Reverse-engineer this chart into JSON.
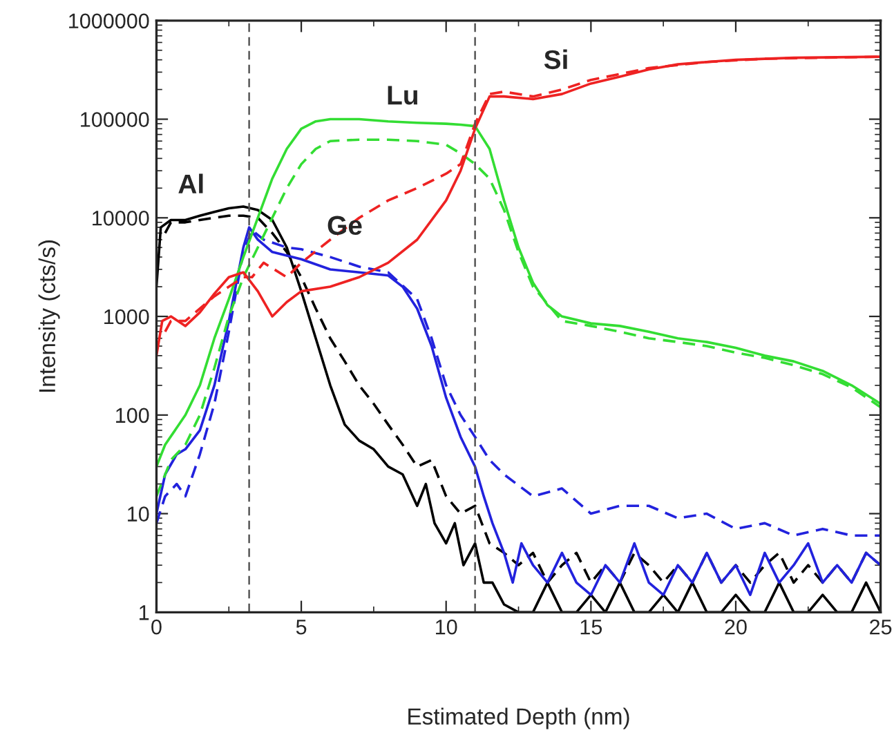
{
  "chart_data": {
    "type": "line",
    "xlabel": "Estimated Depth (nm)",
    "ylabel": "Intensity (cts/s)",
    "xlim": [
      0,
      25
    ],
    "xticks": [
      0,
      5,
      10,
      15,
      20,
      25
    ],
    "ylim": [
      1,
      1000000
    ],
    "yticks": [
      1,
      10,
      100,
      1000,
      10000,
      100000,
      1000000
    ],
    "log": "y",
    "grid": false,
    "legend": false,
    "marker": "none",
    "ref_lines": [
      {
        "axis": "x",
        "value": 3.2,
        "color": "#555555",
        "line_style": "dashed"
      },
      {
        "axis": "x",
        "value": 11.0,
        "color": "#555555",
        "line_style": "dashed"
      }
    ],
    "annotations": [
      "Al",
      "Ge",
      "Lu",
      "Si"
    ],
    "series": [
      {
        "color": "#000000",
        "line_style": "solid",
        "x": [
          0,
          0.15,
          0.5,
          1,
          1.5,
          2,
          2.5,
          3,
          3.5,
          4,
          4.5,
          5,
          5.5,
          6,
          6.5,
          7,
          7.5,
          8,
          8.5,
          9,
          9.3,
          9.6,
          10,
          10.3,
          10.6,
          11,
          11.3,
          11.6,
          12,
          12.5,
          13,
          13.5,
          14,
          14.5,
          15,
          15.5,
          16,
          16.5,
          17,
          17.5,
          18,
          18.5,
          19,
          19.5,
          20,
          20.5,
          21,
          21.5,
          22,
          22.5,
          23,
          23.5,
          24,
          24.5,
          25
        ],
        "values": [
          2000,
          8000,
          9500,
          9500,
          10500,
          11500,
          12500,
          13000,
          12000,
          9500,
          5000,
          1800,
          600,
          200,
          80,
          55,
          45,
          30,
          25,
          12,
          20,
          8,
          5,
          8,
          3,
          5,
          2,
          2,
          1.2,
          1,
          1,
          2,
          1,
          1,
          1.5,
          1,
          2,
          1,
          1,
          1.5,
          1,
          2,
          1,
          1,
          1.5,
          1,
          1,
          2,
          1,
          1,
          1.5,
          1,
          1,
          2,
          1
        ]
      },
      {
        "color": "#000000",
        "line_style": "dashed",
        "x": [
          0.3,
          0.5,
          1,
          1.5,
          2,
          2.5,
          3,
          3.5,
          4,
          4.5,
          5,
          5.5,
          6,
          6.5,
          7,
          7.5,
          8,
          8.5,
          9,
          9.5,
          10,
          10.5,
          11,
          11.5,
          12,
          12.5,
          13,
          13.5,
          14,
          14.5,
          15,
          15.5,
          16,
          16.5,
          17,
          17.5,
          18,
          18.5,
          19,
          19.5,
          20,
          20.5,
          21,
          21.5,
          22,
          22.5,
          23,
          23.5,
          24,
          24.5,
          25
        ],
        "values": [
          7000,
          9000,
          9000,
          9500,
          10000,
          10500,
          10500,
          10000,
          7000,
          4500,
          2500,
          1200,
          600,
          350,
          200,
          130,
          80,
          50,
          30,
          35,
          15,
          10,
          12,
          5,
          4,
          3,
          4,
          2,
          3,
          4,
          2,
          3,
          2,
          4,
          3,
          2,
          3,
          2,
          4,
          2,
          3,
          2,
          3,
          4,
          2,
          3,
          2,
          3,
          2,
          4,
          3
        ]
      },
      {
        "color": "#2222dd",
        "line_style": "solid",
        "x": [
          0,
          0.3,
          0.7,
          1,
          1.5,
          2,
          2.5,
          3,
          3.2,
          3.5,
          4,
          5,
          6,
          7,
          8,
          8.5,
          9,
          9.5,
          10,
          10.5,
          11,
          11.3,
          11.6,
          12,
          12.3,
          12.6,
          13,
          13.5,
          14,
          14.5,
          15,
          15.5,
          16,
          16.5,
          17,
          17.5,
          18,
          18.5,
          19,
          19.5,
          20,
          20.5,
          21,
          21.5,
          22,
          22.5,
          23,
          23.5,
          24,
          24.5,
          25
        ],
        "values": [
          10,
          25,
          40,
          45,
          70,
          200,
          900,
          5000,
          8000,
          6000,
          4500,
          3800,
          3000,
          2800,
          2600,
          2000,
          1200,
          500,
          150,
          60,
          30,
          15,
          8,
          4,
          2,
          5,
          3,
          2,
          4,
          2,
          1.5,
          3,
          2,
          5,
          2,
          1.5,
          3,
          2,
          4,
          2,
          3,
          1.5,
          4,
          2,
          3,
          5,
          2,
          3,
          2,
          4,
          3
        ]
      },
      {
        "color": "#2222dd",
        "line_style": "dashed",
        "x": [
          0,
          0.3,
          0.7,
          1,
          1.5,
          2,
          2.5,
          3,
          3.3,
          3.7,
          4.5,
          5,
          6,
          7,
          8,
          9,
          9.5,
          10,
          10.5,
          11,
          11.5,
          12,
          13,
          14,
          15,
          16,
          17,
          18,
          19,
          20,
          21,
          22,
          23,
          24,
          25
        ],
        "values": [
          8,
          15,
          20,
          15,
          40,
          130,
          700,
          4500,
          7500,
          6000,
          5000,
          4800,
          4000,
          3200,
          2800,
          1500,
          600,
          200,
          100,
          60,
          35,
          25,
          15,
          18,
          10,
          12,
          12,
          9,
          10,
          7,
          8,
          6,
          7,
          6,
          6
        ]
      },
      {
        "color": "#33dd33",
        "line_style": "solid",
        "x": [
          0,
          0.3,
          1,
          1.5,
          2,
          2.5,
          3,
          3.5,
          4,
          4.5,
          5,
          5.5,
          6,
          7,
          8,
          9,
          10,
          10.5,
          11,
          11.5,
          12,
          12.5,
          13,
          13.5,
          14,
          15,
          16,
          17,
          18,
          19,
          20,
          21,
          22,
          23,
          24,
          25
        ],
        "values": [
          30,
          50,
          100,
          200,
          600,
          1500,
          4000,
          10000,
          25000,
          50000,
          80000,
          95000,
          100000,
          100000,
          95000,
          92000,
          90000,
          88000,
          85000,
          50000,
          15000,
          5000,
          2200,
          1300,
          1000,
          850,
          800,
          700,
          600,
          550,
          480,
          400,
          350,
          280,
          200,
          130
        ]
      },
      {
        "color": "#33dd33",
        "line_style": "dashed",
        "x": [
          0,
          0.5,
          1,
          1.5,
          2,
          2.5,
          3,
          3.5,
          4,
          4.5,
          5,
          5.5,
          6,
          7,
          8,
          9,
          10,
          10.5,
          11,
          11.5,
          12,
          12.5,
          13,
          14,
          15,
          16,
          17,
          18,
          19,
          20,
          21,
          22,
          23,
          24,
          25
        ],
        "values": [
          15,
          35,
          50,
          100,
          300,
          1000,
          2500,
          5000,
          10000,
          20000,
          35000,
          50000,
          60000,
          62000,
          62000,
          60000,
          55000,
          45000,
          35000,
          25000,
          12000,
          4500,
          2000,
          900,
          800,
          700,
          600,
          550,
          500,
          430,
          380,
          320,
          260,
          190,
          120
        ]
      },
      {
        "color": "#ee2222",
        "line_style": "solid",
        "x": [
          0,
          0.2,
          0.5,
          1,
          1.5,
          2,
          2.5,
          3,
          3.5,
          4,
          4.5,
          5,
          6,
          7,
          8,
          9,
          10,
          10.5,
          11,
          11.5,
          12,
          13,
          14,
          15,
          16,
          17,
          18,
          19,
          20,
          22,
          25
        ],
        "values": [
          400,
          900,
          1000,
          800,
          1100,
          1700,
          2500,
          2800,
          1800,
          1000,
          1400,
          1800,
          2000,
          2500,
          3500,
          6000,
          15000,
          30000,
          80000,
          170000,
          170000,
          160000,
          180000,
          230000,
          270000,
          320000,
          360000,
          380000,
          400000,
          420000,
          430000
        ]
      },
      {
        "color": "#ee2222",
        "line_style": "dashed",
        "x": [
          0.3,
          0.5,
          1,
          1.5,
          2,
          2.5,
          3,
          3.3,
          3.7,
          4.5,
          5,
          6,
          7,
          8,
          9,
          10,
          10.5,
          11,
          11.5,
          12,
          13,
          14,
          15,
          17,
          19,
          21,
          23,
          25
        ],
        "values": [
          700,
          900,
          900,
          1200,
          1600,
          2000,
          2500,
          2500,
          3500,
          2500,
          3500,
          6000,
          10000,
          15000,
          20000,
          28000,
          35000,
          90000,
          180000,
          190000,
          170000,
          200000,
          250000,
          330000,
          380000,
          410000,
          420000,
          430000
        ]
      }
    ]
  }
}
